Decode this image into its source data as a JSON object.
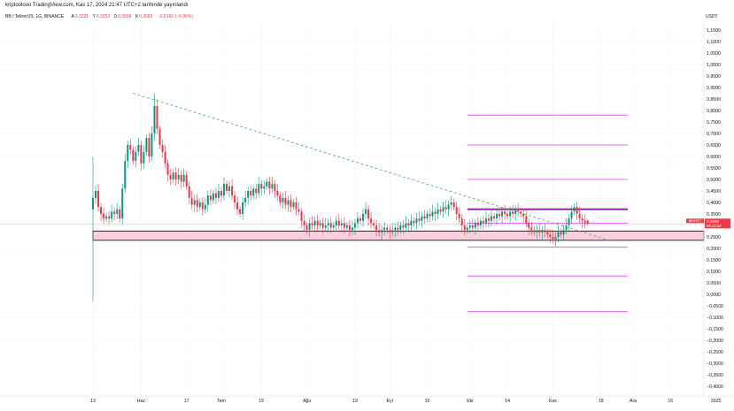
{
  "header": {
    "publisher": "kriptoolooo TradingView.com, Kas 17, 2024 21:47 UTC+2 tarihinde yayınlandı"
  },
  "legend": {
    "symbol": "BB / TetherUS, 1G, BINANCE",
    "open_label": "A",
    "open": "0,3221",
    "high_label": "Y",
    "high": "0,3252",
    "low_label": "D",
    "low": "0,3008",
    "close_label": "K",
    "close": "0,3063",
    "change": "−0,0160 (−4,96%)"
  },
  "price_axis": {
    "currency": "USDT"
  },
  "price_badge": {
    "symbol": "BBUSDT",
    "price": "0,3063",
    "countdown": "06:13:32"
  },
  "colors": {
    "up": "#089981",
    "down": "#f23645",
    "trendline": "#4caf50",
    "zone_fill": "#f8bbd0",
    "zone_border": "#000000",
    "resistance": "#9c27b0",
    "levels": "#e040fb",
    "badge": "#f23645"
  },
  "chart_data": {
    "type": "candlestick",
    "symbol": "BB / TetherUS",
    "interval": "1G",
    "exchange": "BINANCE",
    "ylim": [
      -0.42,
      1.2
    ],
    "y_ticks": [
      1.15,
      1.1,
      1.05,
      1.0,
      0.95,
      0.9,
      0.85,
      0.8,
      0.75,
      0.7,
      0.65,
      0.6,
      0.55,
      0.5,
      0.45,
      0.4,
      0.35,
      0.3,
      0.25,
      0.2,
      0.15,
      0.1,
      0.05,
      0.0,
      -0.05,
      -0.1,
      -0.15,
      -0.2,
      -0.25,
      -0.3,
      -0.35,
      -0.4
    ],
    "y_tick_labels": [
      "1,1500",
      "1,1000",
      "1,0500",
      "1,0000",
      "0,9500",
      "0,9000",
      "0,8500",
      "0,8000",
      "0,7500",
      "0,7000",
      "0,6500",
      "0,6000",
      "0,5500",
      "0,5000",
      "0,4500",
      "0,4000",
      "0,3500",
      "0,3000",
      "0,2500",
      "0,2000",
      "0,1500",
      "0,1000",
      "0,0500",
      "0,0000",
      "−0,0500",
      "−0,1000",
      "−0,1500",
      "−0,2000",
      "−0,2500",
      "−0,3000",
      "−0,3500",
      "−0,4000"
    ],
    "x_ticks": [
      {
        "label": "13",
        "day": 0
      },
      {
        "label": "Haz",
        "day": 18
      },
      {
        "label": "17",
        "day": 35
      },
      {
        "label": "Tem",
        "day": 48
      },
      {
        "label": "15",
        "day": 63
      },
      {
        "label": "Ağu",
        "day": 80
      },
      {
        "label": "19",
        "day": 98
      },
      {
        "label": "Eyl",
        "day": 111
      },
      {
        "label": "16",
        "day": 125
      },
      {
        "label": "Eki",
        "day": 141
      },
      {
        "label": "14",
        "day": 155
      },
      {
        "label": "Kas",
        "day": 172
      },
      {
        "label": "18",
        "day": 190
      },
      {
        "label": "Ara",
        "day": 202
      },
      {
        "label": "16",
        "day": 216
      },
      {
        "label": "2025",
        "day": 233
      }
    ],
    "x_range_days": [
      -1,
      236
    ],
    "key_points": [
      [
        0,
        0.42
      ],
      [
        1,
        0.45
      ],
      [
        2,
        0.38
      ],
      [
        3,
        0.35
      ],
      [
        4,
        0.33
      ],
      [
        5,
        0.34
      ],
      [
        6,
        0.33
      ],
      [
        7,
        0.36
      ],
      [
        8,
        0.35
      ],
      [
        9,
        0.37
      ],
      [
        10,
        0.33
      ],
      [
        11,
        0.46
      ],
      [
        12,
        0.58
      ],
      [
        13,
        0.65
      ],
      [
        14,
        0.63
      ],
      [
        15,
        0.58
      ],
      [
        16,
        0.62
      ],
      [
        17,
        0.65
      ],
      [
        18,
        0.57
      ],
      [
        19,
        0.62
      ],
      [
        20,
        0.68
      ],
      [
        21,
        0.6
      ],
      [
        22,
        0.7
      ],
      [
        23,
        0.82
      ],
      [
        24,
        0.72
      ],
      [
        25,
        0.65
      ],
      [
        26,
        0.62
      ],
      [
        27,
        0.57
      ],
      [
        28,
        0.52
      ],
      [
        29,
        0.5
      ],
      [
        30,
        0.53
      ],
      [
        31,
        0.5
      ],
      [
        32,
        0.52
      ],
      [
        33,
        0.49
      ],
      [
        34,
        0.52
      ],
      [
        35,
        0.47
      ],
      [
        36,
        0.42
      ],
      [
        37,
        0.39
      ],
      [
        38,
        0.41
      ],
      [
        39,
        0.38
      ],
      [
        40,
        0.4
      ],
      [
        41,
        0.37
      ],
      [
        42,
        0.39
      ],
      [
        43,
        0.43
      ],
      [
        44,
        0.41
      ],
      [
        45,
        0.44
      ],
      [
        46,
        0.42
      ],
      [
        47,
        0.45
      ],
      [
        48,
        0.43
      ],
      [
        49,
        0.48
      ],
      [
        50,
        0.45
      ],
      [
        51,
        0.47
      ],
      [
        52,
        0.43
      ],
      [
        53,
        0.4
      ],
      [
        54,
        0.37
      ],
      [
        55,
        0.35
      ],
      [
        56,
        0.4
      ],
      [
        57,
        0.42
      ],
      [
        58,
        0.45
      ],
      [
        59,
        0.43
      ],
      [
        60,
        0.46
      ],
      [
        61,
        0.44
      ],
      [
        62,
        0.48
      ],
      [
        63,
        0.46
      ],
      [
        64,
        0.47
      ],
      [
        65,
        0.49
      ],
      [
        66,
        0.46
      ],
      [
        67,
        0.48
      ],
      [
        68,
        0.45
      ],
      [
        69,
        0.43
      ],
      [
        70,
        0.4
      ],
      [
        71,
        0.42
      ],
      [
        72,
        0.39
      ],
      [
        73,
        0.41
      ],
      [
        74,
        0.38
      ],
      [
        75,
        0.4
      ],
      [
        76,
        0.37
      ],
      [
        77,
        0.36
      ],
      [
        78,
        0.32
      ],
      [
        79,
        0.3
      ],
      [
        80,
        0.28
      ],
      [
        81,
        0.31
      ],
      [
        82,
        0.3
      ],
      [
        83,
        0.32
      ],
      [
        84,
        0.3
      ],
      [
        85,
        0.31
      ],
      [
        86,
        0.29
      ],
      [
        87,
        0.3
      ],
      [
        88,
        0.31
      ],
      [
        89,
        0.29
      ],
      [
        90,
        0.3
      ],
      [
        91,
        0.32
      ],
      [
        92,
        0.3
      ],
      [
        93,
        0.31
      ],
      [
        94,
        0.29
      ],
      [
        95,
        0.3
      ],
      [
        96,
        0.28
      ],
      [
        97,
        0.29
      ],
      [
        98,
        0.31
      ],
      [
        99,
        0.33
      ],
      [
        100,
        0.32
      ],
      [
        101,
        0.35
      ],
      [
        102,
        0.37
      ],
      [
        103,
        0.33
      ],
      [
        104,
        0.31
      ],
      [
        105,
        0.3
      ],
      [
        106,
        0.28
      ],
      [
        107,
        0.27
      ],
      [
        108,
        0.28
      ],
      [
        109,
        0.29
      ],
      [
        110,
        0.28
      ],
      [
        111,
        0.27
      ],
      [
        112,
        0.28
      ],
      [
        113,
        0.29
      ],
      [
        114,
        0.28
      ],
      [
        115,
        0.3
      ],
      [
        116,
        0.29
      ],
      [
        117,
        0.31
      ],
      [
        118,
        0.3
      ],
      [
        119,
        0.32
      ],
      [
        120,
        0.31
      ],
      [
        121,
        0.33
      ],
      [
        122,
        0.32
      ],
      [
        123,
        0.34
      ],
      [
        124,
        0.33
      ],
      [
        125,
        0.35
      ],
      [
        126,
        0.34
      ],
      [
        127,
        0.36
      ],
      [
        128,
        0.35
      ],
      [
        129,
        0.37
      ],
      [
        130,
        0.36
      ],
      [
        131,
        0.38
      ],
      [
        132,
        0.37
      ],
      [
        133,
        0.39
      ],
      [
        134,
        0.4
      ],
      [
        135,
        0.38
      ],
      [
        136,
        0.35
      ],
      [
        137,
        0.33
      ],
      [
        138,
        0.3
      ],
      [
        139,
        0.28
      ],
      [
        140,
        0.29
      ],
      [
        141,
        0.3
      ],
      [
        142,
        0.29
      ],
      [
        143,
        0.31
      ],
      [
        144,
        0.3
      ],
      [
        145,
        0.32
      ],
      [
        146,
        0.31
      ],
      [
        147,
        0.33
      ],
      [
        148,
        0.32
      ],
      [
        149,
        0.34
      ],
      [
        150,
        0.33
      ],
      [
        151,
        0.35
      ],
      [
        152,
        0.34
      ],
      [
        153,
        0.36
      ],
      [
        154,
        0.35
      ],
      [
        155,
        0.34
      ],
      [
        156,
        0.36
      ],
      [
        157,
        0.35
      ],
      [
        158,
        0.37
      ],
      [
        159,
        0.36
      ],
      [
        160,
        0.35
      ],
      [
        161,
        0.34
      ],
      [
        162,
        0.31
      ],
      [
        163,
        0.29
      ],
      [
        164,
        0.28
      ],
      [
        165,
        0.27
      ],
      [
        166,
        0.28
      ],
      [
        167,
        0.27
      ],
      [
        168,
        0.28
      ],
      [
        169,
        0.27
      ],
      [
        170,
        0.26
      ],
      [
        171,
        0.25
      ],
      [
        172,
        0.24
      ],
      [
        173,
        0.25
      ],
      [
        174,
        0.27
      ],
      [
        175,
        0.26
      ],
      [
        176,
        0.28
      ],
      [
        177,
        0.3
      ],
      [
        178,
        0.33
      ],
      [
        179,
        0.36
      ],
      [
        180,
        0.38
      ],
      [
        181,
        0.35
      ],
      [
        182,
        0.33
      ],
      [
        183,
        0.32
      ],
      [
        184,
        0.31
      ],
      [
        185,
        0.3063
      ]
    ],
    "annotations": {
      "trendline": {
        "from": [
          15,
          0.875
        ],
        "to": [
          193,
          0.235
        ],
        "style": "dashed"
      },
      "support_zone": {
        "from_day": 0,
        "to_day": 236,
        "low": 0.235,
        "high": 0.275
      },
      "resistance_line": {
        "from_day": 140,
        "to_day": 200,
        "value": 0.37
      },
      "levels": [
        {
          "from_day": 140,
          "to_day": 200,
          "value": 0.78
        },
        {
          "from_day": 140,
          "to_day": 200,
          "value": 0.65
        },
        {
          "from_day": 140,
          "to_day": 200,
          "value": 0.5
        },
        {
          "from_day": 140,
          "to_day": 200,
          "value": 0.31
        },
        {
          "from_day": 140,
          "to_day": 200,
          "value": 0.205
        },
        {
          "from_day": 140,
          "to_day": 200,
          "value": 0.08
        },
        {
          "from_day": 140,
          "to_day": 200,
          "value": -0.075
        }
      ],
      "current_price_line": 0.3063
    }
  }
}
